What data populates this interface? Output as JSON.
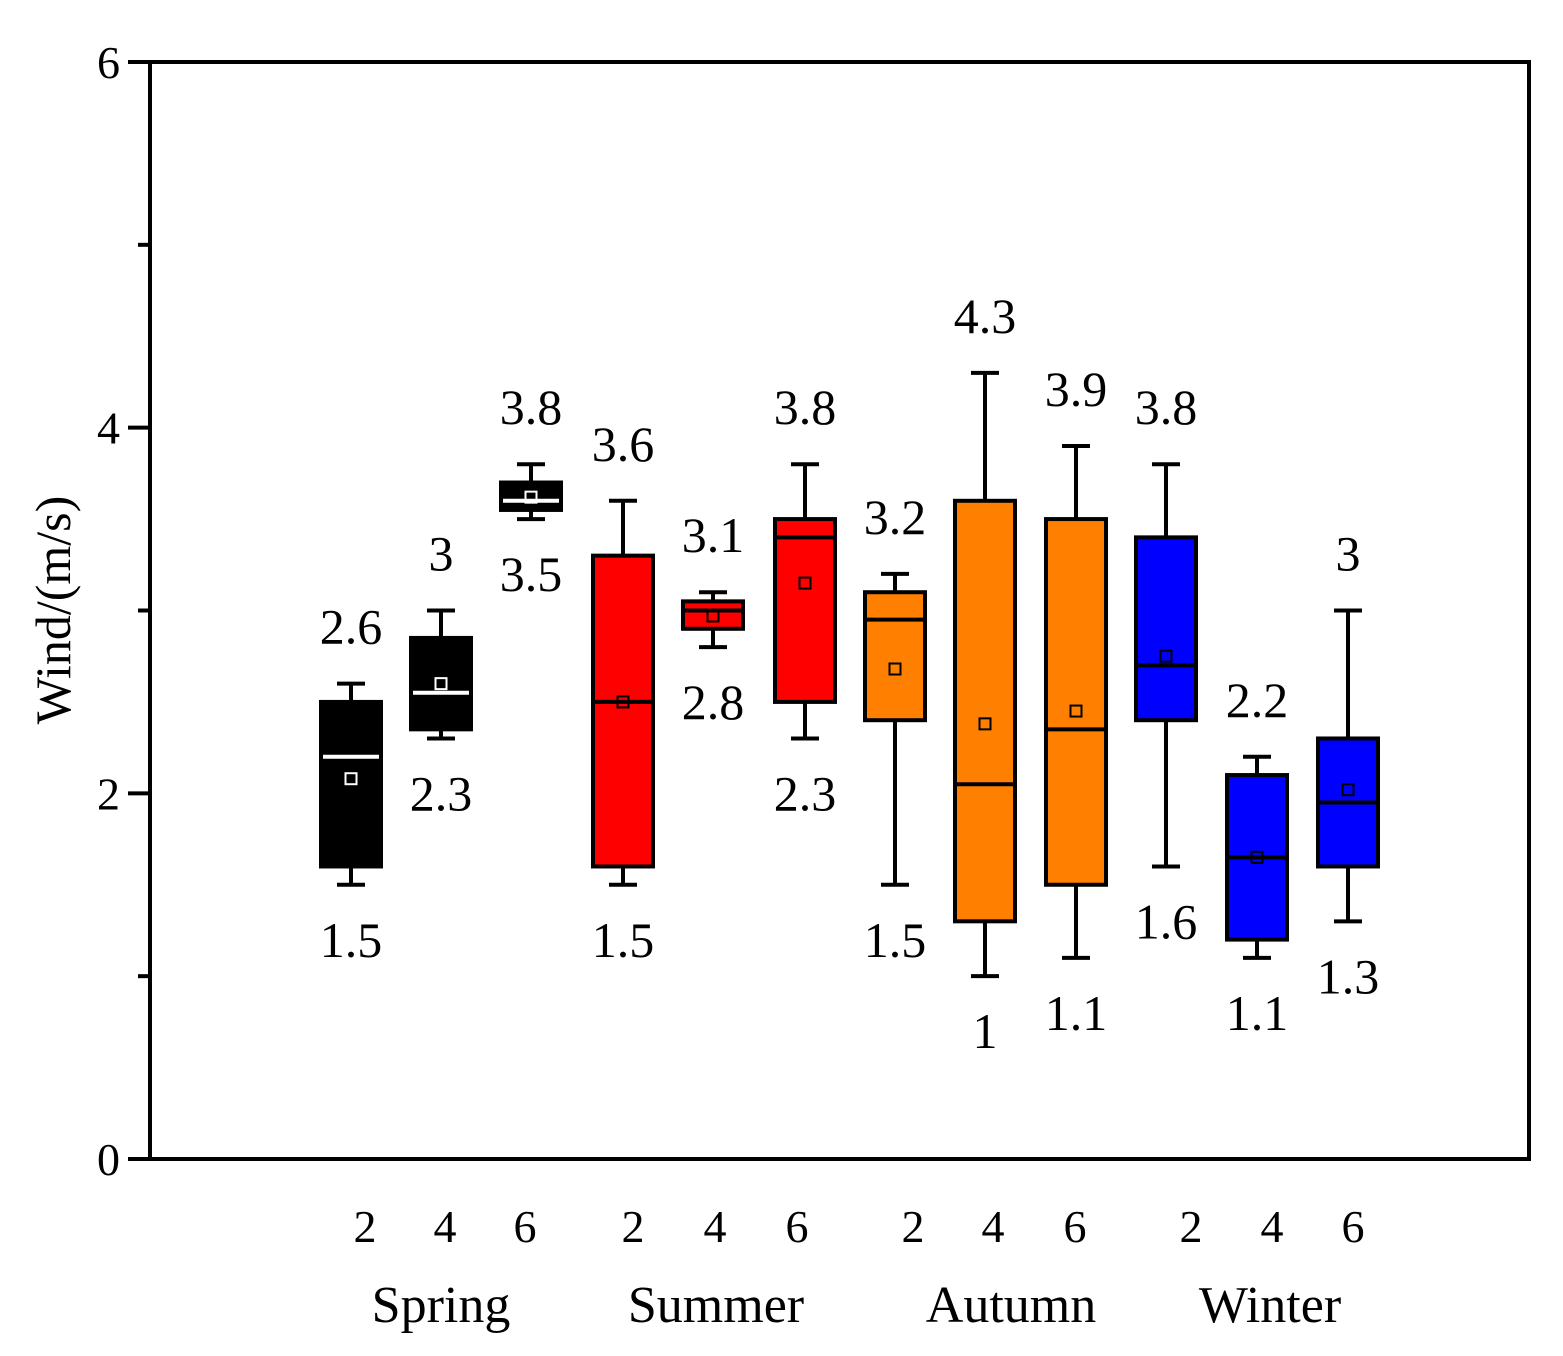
{
  "chart_data": {
    "type": "box",
    "ylabel": "Wind/(m/s)",
    "ylim": [
      0,
      6
    ],
    "yticks": [
      0,
      2,
      4,
      6
    ],
    "groups": [
      {
        "season": "Spring",
        "color": "#000000",
        "median_color": "#ffffff",
        "boxes": [
          {
            "x_label": "2",
            "min": 1.5,
            "q1": 1.6,
            "median": 2.2,
            "q3": 2.5,
            "max": 2.6,
            "mean": 2.08,
            "label_max": "2.6",
            "label_min": "1.5"
          },
          {
            "x_label": "4",
            "min": 2.3,
            "q1": 2.35,
            "median": 2.55,
            "q3": 2.85,
            "max": 3.0,
            "mean": 2.6,
            "label_max": "3",
            "label_min": "2.3"
          },
          {
            "x_label": "6",
            "min": 3.5,
            "q1": 3.55,
            "median": 3.6,
            "q3": 3.7,
            "max": 3.8,
            "mean": 3.62,
            "label_max": "3.8",
            "label_min": "3.5"
          }
        ]
      },
      {
        "season": "Summer",
        "color": "#ff0000",
        "median_color": "#000000",
        "boxes": [
          {
            "x_label": "2",
            "min": 1.5,
            "q1": 1.6,
            "median": 2.5,
            "q3": 3.3,
            "max": 3.6,
            "mean": 2.5,
            "label_max": "3.6",
            "label_min": "1.5"
          },
          {
            "x_label": "4",
            "min": 2.8,
            "q1": 2.9,
            "median": 3.0,
            "q3": 3.05,
            "max": 3.1,
            "mean": 2.97,
            "label_max": "3.1",
            "label_min": "2.8"
          },
          {
            "x_label": "6",
            "min": 2.3,
            "q1": 2.5,
            "median": 3.4,
            "q3": 3.5,
            "max": 3.8,
            "mean": 3.15,
            "label_max": "3.8",
            "label_min": "2.3"
          }
        ]
      },
      {
        "season": "Autumn",
        "color": "#ff8000",
        "median_color": "#000000",
        "boxes": [
          {
            "x_label": "2",
            "min": 1.5,
            "q1": 2.4,
            "median": 2.95,
            "q3": 3.1,
            "max": 3.2,
            "mean": 2.68,
            "label_max": "3.2",
            "label_min": "1.5"
          },
          {
            "x_label": "4",
            "min": 1.0,
            "q1": 1.3,
            "median": 2.05,
            "q3": 3.6,
            "max": 4.3,
            "mean": 2.38,
            "label_max": "4.3",
            "label_min": "1"
          },
          {
            "x_label": "6",
            "min": 1.1,
            "q1": 1.5,
            "median": 2.35,
            "q3": 3.5,
            "max": 3.9,
            "mean": 2.45,
            "label_max": "3.9",
            "label_min": "1.1"
          }
        ]
      },
      {
        "season": "Winter",
        "color": "#0000ff",
        "median_color": "#000000",
        "boxes": [
          {
            "x_label": "2",
            "min": 1.6,
            "q1": 2.4,
            "median": 2.7,
            "q3": 3.4,
            "max": 3.8,
            "mean": 2.75,
            "label_max": "3.8",
            "label_min": "1.6"
          },
          {
            "x_label": "4",
            "min": 1.1,
            "q1": 1.2,
            "median": 1.65,
            "q3": 2.1,
            "max": 2.2,
            "mean": 1.65,
            "label_max": "2.2",
            "label_min": "1.1"
          },
          {
            "x_label": "6",
            "min": 1.3,
            "q1": 1.6,
            "median": 1.95,
            "q3": 2.3,
            "max": 3.0,
            "mean": 2.02,
            "label_max": "3",
            "label_min": "1.3"
          }
        ]
      }
    ]
  }
}
